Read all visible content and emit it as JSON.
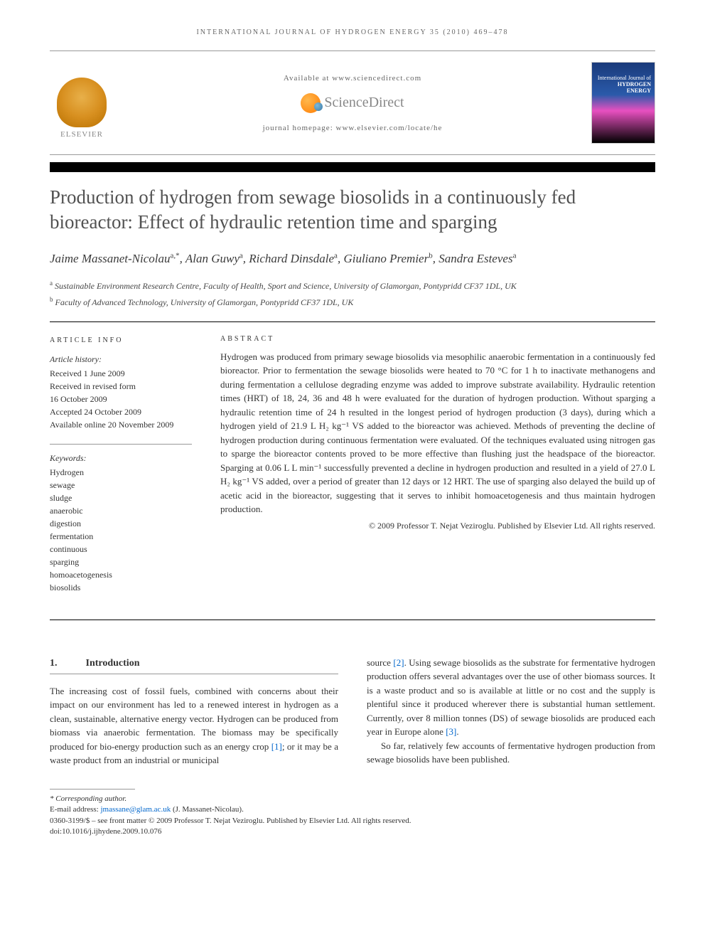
{
  "running_head": "INTERNATIONAL JOURNAL OF HYDROGEN ENERGY 35 (2010) 469–478",
  "header": {
    "available_at": "Available at www.sciencedirect.com",
    "sd_brand": "ScienceDirect",
    "journal_homepage": "journal homepage: www.elsevier.com/locate/he",
    "elsevier": "ELSEVIER",
    "cover_line1": "International Journal of",
    "cover_line2": "HYDROGEN",
    "cover_line3": "ENERGY"
  },
  "title": "Production of hydrogen from sewage biosolids in a continuously fed bioreactor: Effect of hydraulic retention time and sparging",
  "authors_html": "Jaime Massanet-Nicolau",
  "authors": [
    {
      "name": "Jaime Massanet-Nicolau",
      "sup": "a,*"
    },
    {
      "name": "Alan Guwy",
      "sup": "a"
    },
    {
      "name": "Richard Dinsdale",
      "sup": "a"
    },
    {
      "name": "Giuliano Premier",
      "sup": "b"
    },
    {
      "name": "Sandra Esteves",
      "sup": "a"
    }
  ],
  "affiliations": [
    {
      "sup": "a",
      "text": "Sustainable Environment Research Centre, Faculty of Health, Sport and Science, University of Glamorgan, Pontypridd CF37 1DL, UK"
    },
    {
      "sup": "b",
      "text": "Faculty of Advanced Technology, University of Glamorgan, Pontypridd CF37 1DL, UK"
    }
  ],
  "article_info": {
    "heading": "ARTICLE INFO",
    "history_label": "Article history:",
    "history": [
      "Received 1 June 2009",
      "Received in revised form",
      "16 October 2009",
      "Accepted 24 October 2009",
      "Available online 20 November 2009"
    ],
    "keywords_label": "Keywords:",
    "keywords": [
      "Hydrogen",
      "sewage",
      "sludge",
      "anaerobic",
      "digestion",
      "fermentation",
      "continuous",
      "sparging",
      "homoacetogenesis",
      "biosolids"
    ]
  },
  "abstract": {
    "heading": "ABSTRACT",
    "text": "Hydrogen was produced from primary sewage biosolids via mesophilic anaerobic fermentation in a continuously fed bioreactor. Prior to fermentation the sewage biosolids were heated to 70 °C for 1 h to inactivate methanogens and during fermentation a cellulose degrading enzyme was added to improve substrate availability. Hydraulic retention times (HRT) of 18, 24, 36 and 48 h were evaluated for the duration of hydrogen production. Without sparging a hydraulic retention time of 24 h resulted in the longest period of hydrogen production (3 days), during which a hydrogen yield of 21.9 L H₂ kg⁻¹ VS added to the bioreactor was achieved. Methods of preventing the decline of hydrogen production during continuous fermentation were evaluated. Of the techniques evaluated using nitrogen gas to sparge the bioreactor contents proved to be more effective than flushing just the headspace of the bioreactor. Sparging at 0.06 L L min⁻¹ successfully prevented a decline in hydrogen production and resulted in a yield of 27.0 L H₂ kg⁻¹ VS added, over a period of greater than 12 days or 12 HRT. The use of sparging also delayed the build up of acetic acid in the bioreactor, suggesting that it serves to inhibit homoacetogenesis and thus maintain hydrogen production.",
    "copyright": "© 2009 Professor T. Nejat Veziroglu. Published by Elsevier Ltd. All rights reserved."
  },
  "section1": {
    "number": "1.",
    "title": "Introduction",
    "col1_p1": "The increasing cost of fossil fuels, combined with concerns about their impact on our environment has led to a renewed interest in hydrogen as a clean, sustainable, alternative energy vector. Hydrogen can be produced from biomass via anaerobic fermentation. The biomass may be specifically produced for bio-energy production such as an energy crop ",
    "ref1": "[1]",
    "col1_p1b": "; or it may be a waste product from an industrial or municipal",
    "col2_p1a": "source ",
    "ref2": "[2]",
    "col2_p1b": ". Using sewage biosolids as the substrate for fermentative hydrogen production offers several advantages over the use of other biomass sources. It is a waste product and so is available at little or no cost and the supply is plentiful since it produced wherever there is substantial human settlement. Currently, over 8 million tonnes (DS) of sewage biosolids are produced each year in Europe alone ",
    "ref3": "[3]",
    "col2_p1c": ".",
    "col2_p2": "So far, relatively few accounts of fermentative hydrogen production from sewage biosolids have been published."
  },
  "footer": {
    "corresponding": "* Corresponding author.",
    "email_label": "E-mail address: ",
    "email": "jmassane@glam.ac.uk",
    "email_tail": " (J. Massanet-Nicolau).",
    "line1": "0360-3199/$ – see front matter © 2009 Professor T. Nejat Veziroglu. Published by Elsevier Ltd. All rights reserved.",
    "line2": "doi:10.1016/j.ijhydene.2009.10.076"
  },
  "colors": {
    "title_color": "#525252",
    "link_color": "#0066cc",
    "text_color": "#333333"
  }
}
